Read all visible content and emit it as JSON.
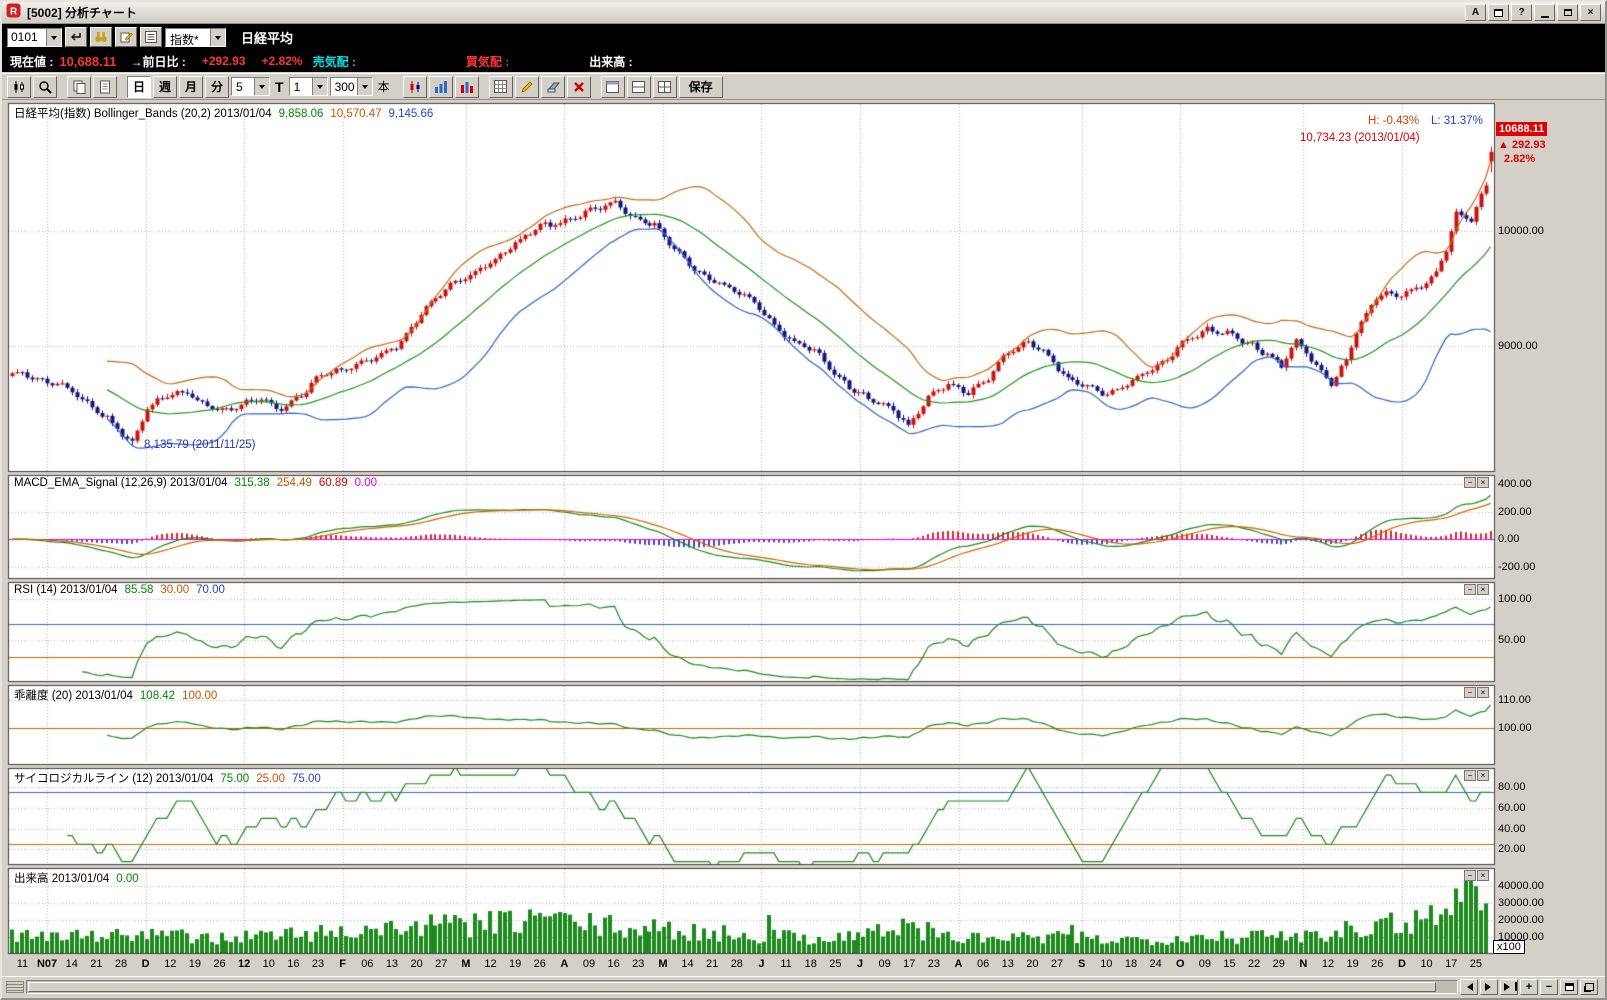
{
  "titlebar": {
    "title": "[5002] 分析チャート",
    "btn_a": "A",
    "btn_help": "?",
    "btn_close": "×"
  },
  "toolbar1": {
    "symbol_input": "0101",
    "index_select": "指数*",
    "symbol_name": "日経平均"
  },
  "quote": {
    "label_current": "現在値 :",
    "current": "10,688.11",
    "label_change": "→前日比 :",
    "change": "+292.93",
    "change_pct": "+2.82%",
    "label_ask": "売気配 :",
    "label_bid": "買気配 :",
    "label_volume": "出来高 :"
  },
  "toolbar2": {
    "period_day": "日",
    "period_week": "週",
    "period_month": "月",
    "period_min": "分",
    "min_value": "5",
    "t_label": "T",
    "interval_value": "1",
    "bars_value": "300",
    "bars_unit": "本",
    "save_label": "保存"
  },
  "panels": {
    "price": {
      "title": "日経平均(指数) Bollinger_Bands (20,2) 2013/01/04",
      "v1": "9,858.06",
      "v2": "10,570.47",
      "v3": "9,145.66"
    },
    "macd": {
      "title": "MACD_EMA_Signal (12,26,9) 2013/01/04",
      "v1": "315.38",
      "v2": "254.49",
      "v3": "60.89",
      "v4": "0.00"
    },
    "rsi": {
      "title": "RSI (14) 2013/01/04",
      "v1": "85.58",
      "v2": "30.00",
      "v3": "70.00"
    },
    "kairi": {
      "title": "乖離度 (20) 2013/01/04",
      "v1": "108.42",
      "v2": "100.00"
    },
    "psych": {
      "title": "サイコロジカルライン (12) 2013/01/04",
      "v1": "75.00",
      "v2": "25.00",
      "v3": "75.00"
    },
    "volume": {
      "title": "出来高 2013/01/04",
      "v1": "0.00"
    }
  },
  "panel_controls": {
    "minimize": "−",
    "close": "×"
  },
  "annotations": {
    "high_pct": "H: -0.43%",
    "low_pct": "L: 31.37%",
    "high_value": "10,734.23 (2013/01/04)",
    "low_value": "8,135.79 (2011/11/25)"
  },
  "last_quote": {
    "price": "10688.11",
    "arrow": "▲",
    "change": "292.93",
    "pct": "2.82%",
    "volume_unit": "x100"
  },
  "scrollbar": {
    "zoom_in": "+",
    "zoom_out": "−"
  },
  "colors": {
    "up": "#cc1111",
    "down": "#15157e",
    "boll_upper": "#c96a16",
    "boll_mid": "#1d9a1d",
    "boll_lower": "#2e64c8",
    "macd": "#1d8a1d",
    "signal": "#cc6600",
    "hist_pos": "#d42a2a",
    "hist_neg": "#4444cc",
    "zero": "#f000f0",
    "line_green": "#1d8a1d",
    "ref_blue": "#3366cc",
    "ref_orange": "#cc6600",
    "volume": "#1c8a1c",
    "grid": "#b8b8b8",
    "border": "#404040",
    "badge_bg": "#e00000"
  },
  "chart_data": {
    "type": "candlestick-multi-panel",
    "bars": 298,
    "seed": 7,
    "price": {
      "name": "日経平均 Bollinger_Bands(20,2)",
      "ylim": [
        7900,
        11113
      ],
      "yticks": [
        {
          "v": 10000,
          "t": "10000.00"
        },
        {
          "v": 9000,
          "t": "9000.00"
        }
      ],
      "last_close": 10688.11,
      "last_high": 10734.23,
      "period_low": 8135.79,
      "close_anchors": [
        [
          0,
          8760
        ],
        [
          5,
          8720
        ],
        [
          10,
          8660
        ],
        [
          14,
          8520
        ],
        [
          19,
          8370
        ],
        [
          24,
          8165
        ],
        [
          27,
          8440
        ],
        [
          31,
          8560
        ],
        [
          35,
          8600
        ],
        [
          39,
          8480
        ],
        [
          43,
          8420
        ],
        [
          47,
          8500
        ],
        [
          50,
          8560
        ],
        [
          54,
          8440
        ],
        [
          58,
          8560
        ],
        [
          62,
          8750
        ],
        [
          66,
          8800
        ],
        [
          70,
          8830
        ],
        [
          74,
          8900
        ],
        [
          78,
          9050
        ],
        [
          82,
          9280
        ],
        [
          86,
          9440
        ],
        [
          90,
          9580
        ],
        [
          94,
          9680
        ],
        [
          98,
          9780
        ],
        [
          102,
          9900
        ],
        [
          106,
          10050
        ],
        [
          110,
          10080
        ],
        [
          114,
          10130
        ],
        [
          118,
          10190
        ],
        [
          121,
          10250
        ],
        [
          125,
          10110
        ],
        [
          129,
          10040
        ],
        [
          133,
          9840
        ],
        [
          137,
          9690
        ],
        [
          141,
          9560
        ],
        [
          145,
          9470
        ],
        [
          149,
          9380
        ],
        [
          153,
          9180
        ],
        [
          157,
          9020
        ],
        [
          161,
          8950
        ],
        [
          165,
          8760
        ],
        [
          169,
          8620
        ],
        [
          173,
          8500
        ],
        [
          177,
          8440
        ],
        [
          180,
          8300
        ],
        [
          184,
          8560
        ],
        [
          188,
          8650
        ],
        [
          192,
          8580
        ],
        [
          196,
          8740
        ],
        [
          200,
          8950
        ],
        [
          204,
          9010
        ],
        [
          208,
          8910
        ],
        [
          212,
          8720
        ],
        [
          216,
          8630
        ],
        [
          220,
          8560
        ],
        [
          224,
          8680
        ],
        [
          228,
          8780
        ],
        [
          232,
          8870
        ],
        [
          236,
          9050
        ],
        [
          240,
          9150
        ],
        [
          244,
          9100
        ],
        [
          248,
          9010
        ],
        [
          252,
          8930
        ],
        [
          255,
          8840
        ],
        [
          258,
          9050
        ],
        [
          261,
          8870
        ],
        [
          263,
          8760
        ],
        [
          265,
          8660
        ],
        [
          268,
          8890
        ],
        [
          270,
          9140
        ],
        [
          274,
          9420
        ],
        [
          277,
          9440
        ],
        [
          279,
          9430
        ],
        [
          283,
          9530
        ],
        [
          286,
          9650
        ],
        [
          288,
          9830
        ],
        [
          290,
          10160
        ],
        [
          293,
          10080
        ],
        [
          295,
          10322
        ],
        [
          296,
          10395.18
        ],
        [
          297,
          10688.11
        ]
      ]
    },
    "macd": {
      "ylim": [
        -290,
        467
      ],
      "yticks": [
        {
          "v": 400,
          "t": "400.00"
        },
        {
          "v": 200,
          "t": "200.00"
        },
        {
          "v": 0,
          "t": "0.00"
        },
        {
          "v": -200,
          "t": "-200.00"
        }
      ],
      "refs": [
        {
          "v": 0,
          "color": "zero"
        }
      ]
    },
    "rsi": {
      "ylim": [
        0,
        120
      ],
      "yticks": [
        {
          "v": 100,
          "t": "100.00"
        },
        {
          "v": 50,
          "t": "50.00"
        }
      ],
      "refs": [
        {
          "v": 70,
          "color": "ref_blue"
        },
        {
          "v": 30,
          "color": "ref_orange"
        }
      ]
    },
    "kairi": {
      "ylim": [
        86.5,
        115.6
      ],
      "yticks": [
        {
          "v": 110,
          "t": "110.00"
        },
        {
          "v": 100,
          "t": "100.00"
        }
      ],
      "refs": [
        {
          "v": 100,
          "color": "ref_orange"
        }
      ]
    },
    "psych": {
      "ylim": [
        5,
        98.5
      ],
      "yticks": [
        {
          "v": 80,
          "t": "80.00"
        },
        {
          "v": 60,
          "t": "60.00"
        },
        {
          "v": 40,
          "t": "40.00"
        },
        {
          "v": 20,
          "t": "20.00"
        }
      ],
      "refs": [
        {
          "v": 75,
          "color": "ref_blue"
        },
        {
          "v": 25,
          "color": "ref_orange"
        }
      ]
    },
    "volume": {
      "ylim": [
        0,
        50500
      ],
      "yticks": [
        {
          "v": 40000,
          "t": "40000.00"
        },
        {
          "v": 30000,
          "t": "30000.00"
        },
        {
          "v": 20000,
          "t": "20000.00"
        },
        {
          "v": 10000,
          "t": "10000.00"
        }
      ],
      "unit": "x100",
      "anchors": [
        [
          0,
          13000
        ],
        [
          20,
          11000
        ],
        [
          40,
          9500
        ],
        [
          60,
          12000
        ],
        [
          80,
          16000
        ],
        [
          100,
          18000
        ],
        [
          106,
          23000
        ],
        [
          115,
          17000
        ],
        [
          130,
          14000
        ],
        [
          150,
          11000
        ],
        [
          165,
          9500
        ],
        [
          180,
          16000
        ],
        [
          190,
          9000
        ],
        [
          210,
          9500
        ],
        [
          225,
          8500
        ],
        [
          240,
          11000
        ],
        [
          252,
          10000
        ],
        [
          262,
          12000
        ],
        [
          270,
          16000
        ],
        [
          278,
          18000
        ],
        [
          284,
          22000
        ],
        [
          288,
          27000
        ],
        [
          291,
          33000
        ],
        [
          293,
          40000
        ],
        [
          295,
          44000
        ],
        [
          296,
          38000
        ],
        [
          297,
          0
        ]
      ]
    },
    "xaxis": {
      "labels": [
        "11",
        "N07",
        "14",
        "21",
        "28",
        "D",
        "12",
        "19",
        "26",
        "12",
        "10",
        "16",
        "23",
        "F",
        "06",
        "13",
        "20",
        "27",
        "M",
        "12",
        "19",
        "26",
        "A",
        "09",
        "16",
        "23",
        "M",
        "14",
        "21",
        "28",
        "J",
        "11",
        "18",
        "25",
        "J",
        "09",
        "17",
        "23",
        "A",
        "06",
        "13",
        "20",
        "27",
        "S",
        "10",
        "18",
        "24",
        "O",
        "09",
        "15",
        "22",
        "29",
        "N",
        "12",
        "19",
        "26",
        "D",
        "10",
        "17",
        "25"
      ],
      "month_indices": [
        1,
        5,
        9,
        13,
        18,
        22,
        26,
        30,
        34,
        38,
        43,
        47,
        52,
        56
      ]
    }
  }
}
